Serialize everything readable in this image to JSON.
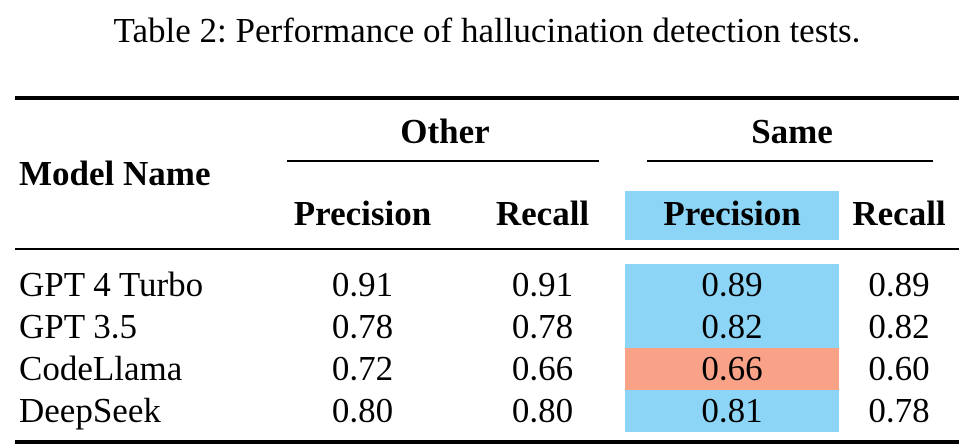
{
  "caption": "Table 2: Performance of hallucination detection tests.",
  "colors": {
    "highlight_blue": "#8DD5F6",
    "highlight_salmon": "#F9A287",
    "text": "#000000",
    "background": "#FFFFFF"
  },
  "table": {
    "column_groups": [
      {
        "label": "Other"
      },
      {
        "label": "Same"
      }
    ],
    "headers": {
      "model": "Model Name",
      "other_precision": "Precision",
      "other_recall": "Recall",
      "same_precision": "Precision",
      "same_recall": "Recall"
    },
    "header_highlight": "blue",
    "rows": [
      {
        "model": "GPT 4 Turbo",
        "other_precision": "0.91",
        "other_recall": "0.91",
        "same_precision": "0.89",
        "same_recall": "0.89",
        "same_precision_highlight": "blue"
      },
      {
        "model": "GPT 3.5",
        "other_precision": "0.78",
        "other_recall": "0.78",
        "same_precision": "0.82",
        "same_recall": "0.82",
        "same_precision_highlight": "blue"
      },
      {
        "model": "CodeLlama",
        "other_precision": "0.72",
        "other_recall": "0.66",
        "same_precision": "0.66",
        "same_recall": "0.60",
        "same_precision_highlight": "salmon"
      },
      {
        "model": "DeepSeek",
        "other_precision": "0.80",
        "other_recall": "0.80",
        "same_precision": "0.81",
        "same_recall": "0.78",
        "same_precision_highlight": "blue"
      }
    ]
  }
}
